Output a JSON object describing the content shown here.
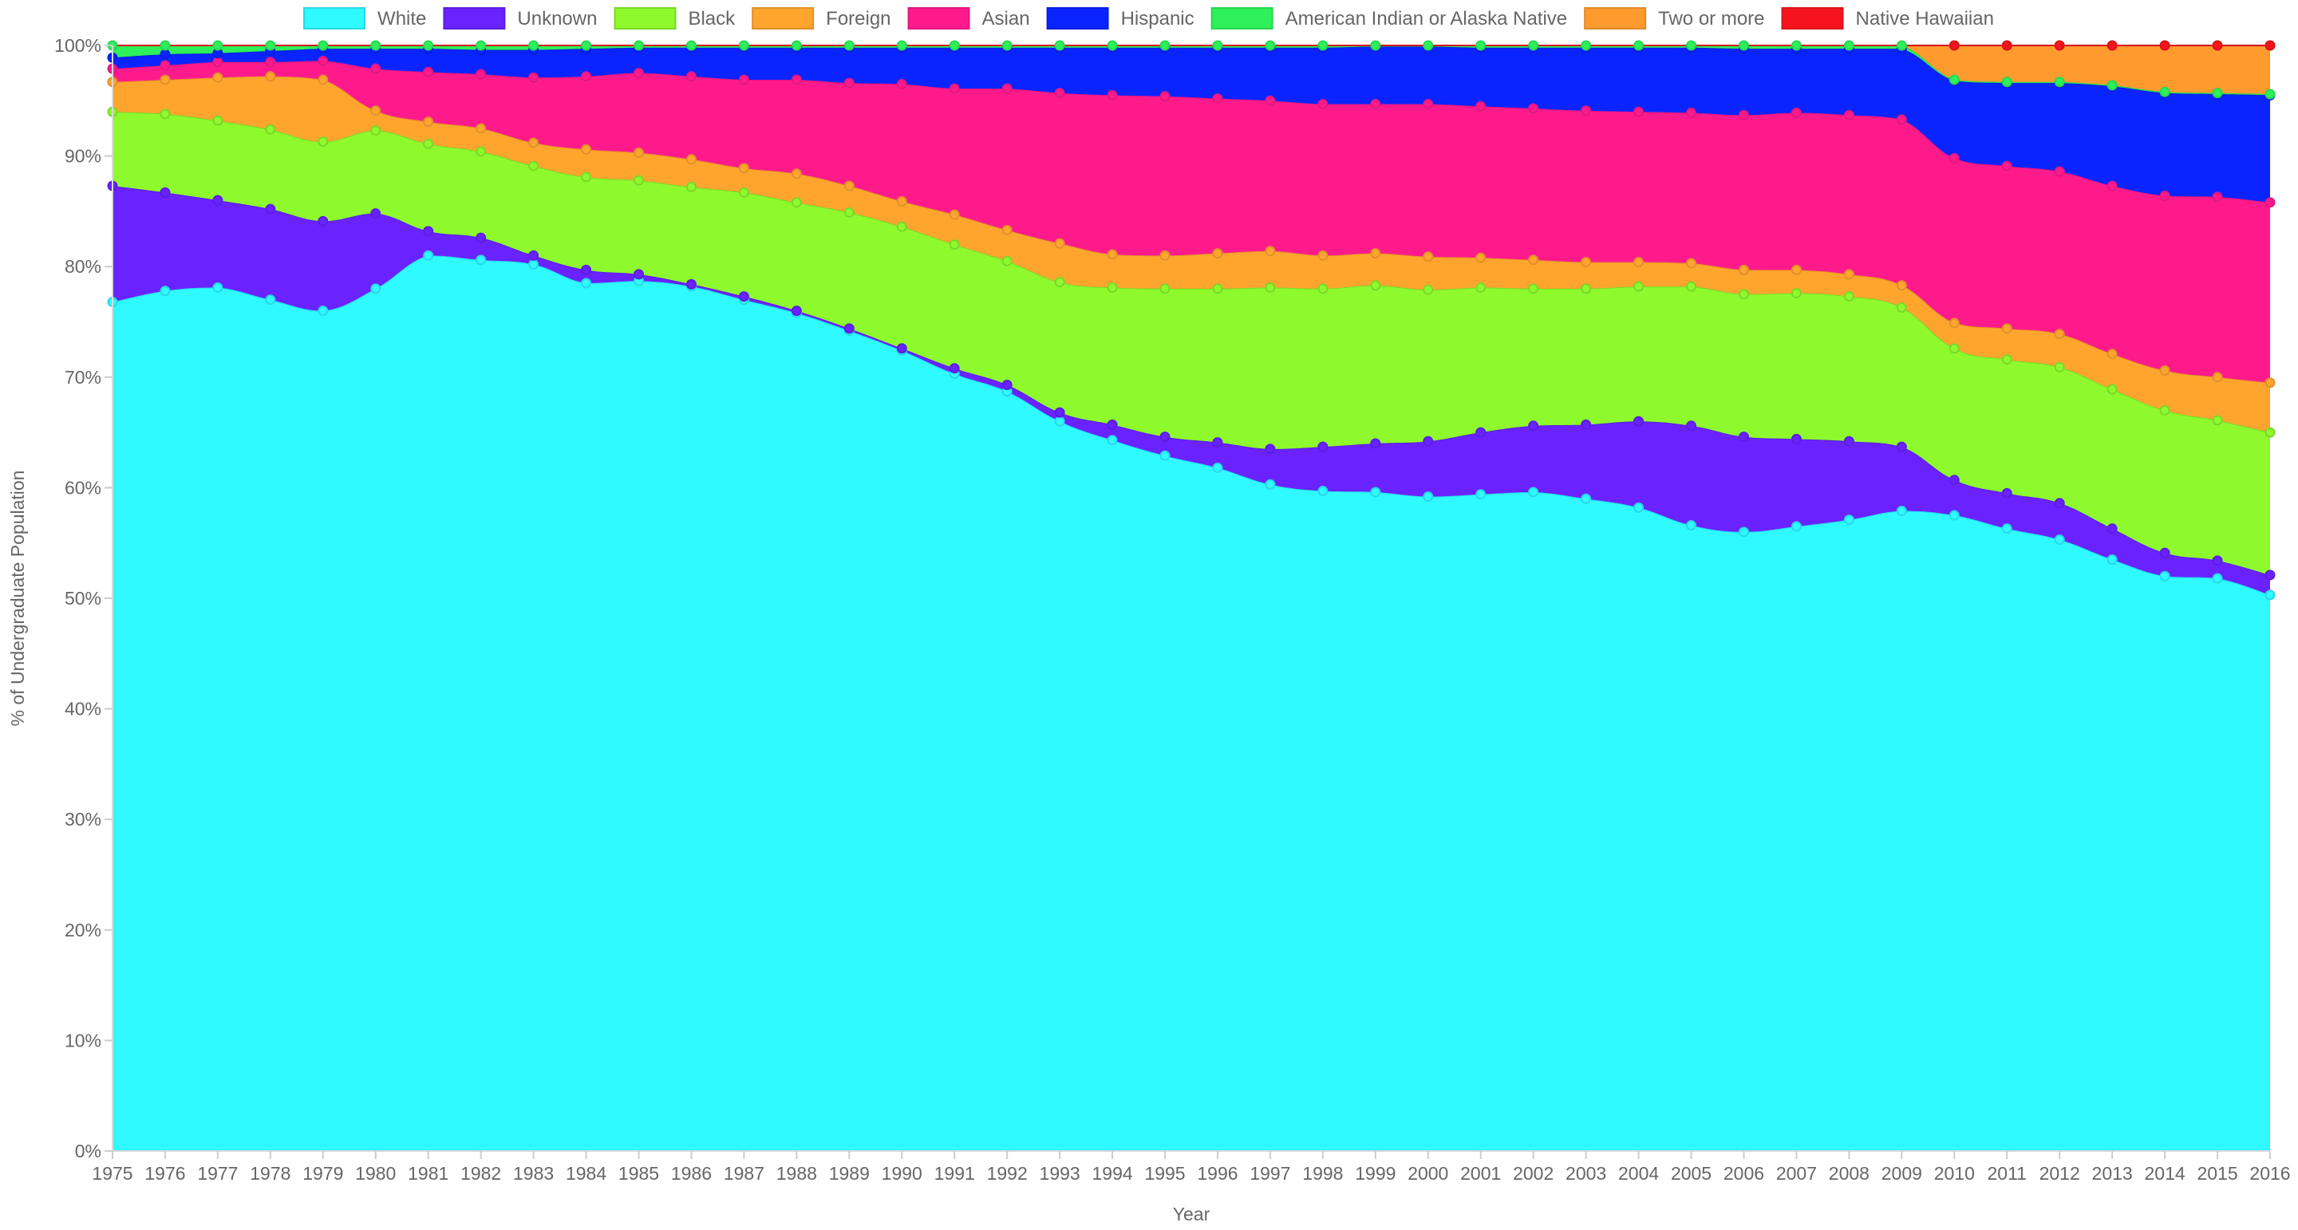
{
  "chart_data": {
    "type": "area",
    "stacked": true,
    "title": "",
    "xlabel": "Year",
    "ylabel": "% of Undergraduate Population",
    "ylim": [
      0,
      100
    ],
    "y_ticks": [
      "0%",
      "10%",
      "20%",
      "30%",
      "40%",
      "50%",
      "60%",
      "70%",
      "80%",
      "90%",
      "100%"
    ],
    "legend_position": "top",
    "grid": false,
    "x": [
      "1975",
      "1976",
      "1977",
      "1978",
      "1979",
      "1980",
      "1981",
      "1982",
      "1983",
      "1984",
      "1985",
      "1986",
      "1987",
      "1988",
      "1989",
      "1990",
      "1991",
      "1992",
      "1993",
      "1994",
      "1995",
      "1996",
      "1997",
      "1998",
      "1999",
      "2000",
      "2001",
      "2002",
      "2003",
      "2004",
      "2005",
      "2006",
      "2007",
      "2008",
      "2009",
      "2010",
      "2011",
      "2012",
      "2013",
      "2014",
      "2015",
      "2016"
    ],
    "series": [
      {
        "name": "White",
        "color": "#2efaff",
        "stroke": "#29d8e6",
        "values": [
          76.8,
          77.8,
          78.1,
          77.0,
          76.0,
          78.0,
          81.0,
          80.6,
          80.2,
          78.5,
          78.7,
          78.2,
          77.0,
          75.8,
          74.2,
          72.4,
          70.3,
          68.7,
          66.0,
          64.3,
          62.9,
          61.8,
          60.3,
          59.7,
          59.6,
          59.2,
          59.4,
          59.6,
          59.0,
          58.2,
          56.6,
          56.0,
          56.5,
          57.1,
          57.9,
          57.5,
          56.3,
          55.3,
          53.5,
          52.0,
          51.8,
          50.3
        ]
      },
      {
        "name": "Unknown",
        "color": "#6a22ff",
        "stroke": "#5a1ee0",
        "values": [
          10.5,
          8.9,
          7.9,
          8.2,
          8.1,
          6.8,
          2.2,
          2.0,
          0.8,
          1.2,
          0.6,
          0.2,
          0.3,
          0.2,
          0.2,
          0.2,
          0.5,
          0.6,
          0.8,
          1.4,
          1.7,
          2.3,
          3.2,
          4.0,
          4.4,
          5.0,
          5.6,
          6.0,
          6.7,
          7.8,
          9.0,
          8.6,
          7.9,
          7.1,
          5.8,
          3.2,
          3.2,
          3.3,
          2.8,
          2.1,
          1.6,
          1.8
        ]
      },
      {
        "name": "Black",
        "color": "#8efa2e",
        "stroke": "#7ad828",
        "values": [
          6.7,
          7.1,
          7.2,
          7.2,
          7.2,
          7.5,
          7.9,
          7.8,
          8.1,
          8.4,
          8.5,
          8.8,
          9.4,
          9.8,
          10.5,
          11.0,
          11.2,
          11.2,
          11.8,
          12.4,
          13.4,
          13.9,
          14.6,
          14.3,
          14.3,
          13.7,
          13.1,
          12.4,
          12.3,
          12.2,
          12.6,
          12.9,
          13.2,
          13.1,
          12.6,
          11.9,
          12.1,
          12.3,
          12.6,
          12.9,
          12.7,
          12.9
        ]
      },
      {
        "name": "Foreign",
        "color": "#ffa52e",
        "stroke": "#e0912a",
        "values": [
          2.7,
          3.1,
          3.9,
          4.8,
          5.6,
          1.8,
          2.0,
          2.1,
          2.1,
          2.5,
          2.5,
          2.5,
          2.2,
          2.6,
          2.4,
          2.3,
          2.7,
          2.8,
          3.5,
          3.0,
          3.0,
          3.2,
          3.3,
          3.0,
          2.9,
          3.0,
          2.7,
          2.6,
          2.4,
          2.2,
          2.1,
          2.2,
          2.1,
          2.0,
          2.0,
          2.3,
          2.8,
          3.0,
          3.2,
          3.6,
          3.9,
          4.5
        ]
      },
      {
        "name": "Asian",
        "color": "#ff1a8c",
        "stroke": "#e01880",
        "values": [
          1.2,
          1.3,
          1.4,
          1.3,
          1.7,
          3.8,
          4.5,
          4.9,
          5.9,
          6.6,
          7.2,
          7.5,
          8.0,
          8.5,
          9.3,
          10.6,
          11.4,
          12.8,
          13.6,
          14.4,
          14.4,
          14.0,
          13.6,
          13.7,
          13.5,
          13.8,
          13.7,
          13.7,
          13.7,
          13.6,
          13.6,
          14.0,
          14.2,
          14.4,
          15.0,
          14.9,
          14.7,
          14.7,
          15.2,
          15.8,
          16.3,
          16.3
        ]
      },
      {
        "name": "Hispanic",
        "color": "#0a24ff",
        "stroke": "#0a1ee0",
        "values": [
          1.0,
          1.0,
          0.8,
          1.0,
          1.1,
          1.8,
          2.1,
          2.2,
          2.5,
          2.5,
          2.3,
          2.6,
          2.9,
          2.9,
          3.2,
          3.3,
          3.7,
          3.7,
          4.1,
          4.3,
          4.4,
          4.6,
          4.8,
          5.1,
          5.2,
          5.2,
          5.3,
          5.5,
          5.7,
          5.8,
          5.9,
          6.0,
          5.8,
          6.0,
          6.4,
          7.0,
          7.5,
          8.0,
          9.0,
          9.3,
          9.3,
          9.7
        ]
      },
      {
        "name": "American Indian or Alaska Native",
        "color": "#2ef05a",
        "stroke": "#28d850",
        "values": [
          1.1,
          0.8,
          0.7,
          0.5,
          0.3,
          0.3,
          0.3,
          0.4,
          0.4,
          0.3,
          0.2,
          0.2,
          0.2,
          0.2,
          0.2,
          0.2,
          0.2,
          0.2,
          0.2,
          0.2,
          0.2,
          0.2,
          0.2,
          0.2,
          0.1,
          0.1,
          0.2,
          0.2,
          0.2,
          0.2,
          0.2,
          0.3,
          0.3,
          0.3,
          0.3,
          0.1,
          0.1,
          0.1,
          0.1,
          0.1,
          0.1,
          0.1
        ]
      },
      {
        "name": "Two or more",
        "color": "#ff9a2e",
        "stroke": "#e08a2a",
        "values": [
          0,
          0,
          0,
          0,
          0,
          0,
          0,
          0,
          0,
          0,
          0,
          0,
          0,
          0,
          0,
          0,
          0,
          0,
          0,
          0,
          0,
          0,
          0,
          0,
          0,
          0,
          0,
          0,
          0,
          0,
          0,
          0,
          0,
          0,
          0,
          3.1,
          3.3,
          3.3,
          3.6,
          4.2,
          4.3,
          4.4
        ]
      },
      {
        "name": "Native Hawaiian",
        "color": "#f5141e",
        "stroke": "#d8141a",
        "values": [
          0,
          0,
          0,
          0,
          0,
          0,
          0,
          0,
          0,
          0,
          0,
          0,
          0,
          0,
          0,
          0,
          0,
          0,
          0,
          0,
          0,
          0,
          0,
          0,
          0,
          0,
          0,
          0,
          0,
          0,
          0,
          0,
          0,
          0,
          0,
          0.1,
          0.1,
          0.1,
          0.1,
          0.1,
          0.1,
          0.1
        ]
      }
    ]
  }
}
